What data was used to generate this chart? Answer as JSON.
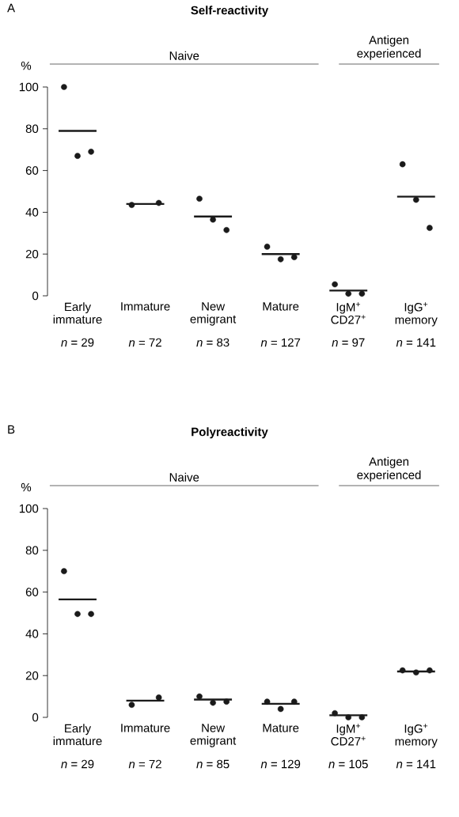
{
  "chart_data": [
    {
      "type": "scatter",
      "title": "Self-reactivity",
      "ylabel": "%",
      "categories": [
        "Early immature",
        "Immature",
        "New emigrant",
        "Mature",
        "IgM$^{+}$ CD27$^{+}$",
        "IgG$^{+}$ memory"
      ],
      "ylim": [
        0,
        100
      ],
      "yticks": [
        0,
        20,
        40,
        60,
        80,
        100
      ],
      "series": [
        {
          "marker": "circle",
          "color": "#1a1a1a",
          "x": [
            "Early immature",
            "Early immature",
            "Early immature",
            "Immature",
            "Immature",
            "New emigrant",
            "New emigrant",
            "New emigrant",
            "Mature",
            "Mature",
            "Mature",
            "IgM$^{+}$ CD27$^{+}$",
            "IgM$^{+}$ CD27$^{+}$",
            "IgM$^{+}$ CD27$^{+}$",
            "IgG$^{+}$ memory",
            "IgG$^{+}$ memory",
            "IgG$^{+}$ memory"
          ],
          "values": [
            100,
            67,
            69,
            43.5,
            44.5,
            46.5,
            36.5,
            31.5,
            23.5,
            17.5,
            18.5,
            5.5,
            1,
            1,
            63,
            46,
            32.5
          ]
        },
        {
          "type": "box",
          "color": "#1a1a1a",
          "boxes": [
            {
              "low": 79,
              "q1": 79,
              "median": 79,
              "q3": 79,
              "high": 79
            },
            {
              "low": 44,
              "q1": 44,
              "median": 44,
              "q3": 44,
              "high": 44
            },
            {
              "low": 38,
              "q1": 38,
              "median": 38,
              "q3": 38,
              "high": 38
            },
            {
              "low": 20,
              "q1": 20,
              "median": 20,
              "q3": 20,
              "high": 20
            },
            {
              "low": 2.5,
              "q1": 2.5,
              "median": 2.5,
              "q3": 2.5,
              "high": 2.5
            },
            {
              "low": 47.5,
              "q1": 47.5,
              "median": 47.5,
              "q3": 47.5,
              "high": 47.5
            }
          ]
        }
      ],
      "annotations": [
        "A",
        "Naive",
        "Antigen experienced",
        "*n* = 29",
        "*n* = 72",
        "*n* = 83",
        "*n* = 127",
        "*n* = 97",
        "*n* = 141"
      ]
    },
    {
      "type": "scatter",
      "title": "Polyreactivity",
      "ylabel": "%",
      "categories": [
        "Early immature",
        "Immature",
        "New emigrant",
        "Mature",
        "IgM$^{+}$ CD27$^{+}$",
        "IgG$^{+}$ memory"
      ],
      "ylim": [
        0,
        100
      ],
      "yticks": [
        0,
        20,
        40,
        60,
        80,
        100
      ],
      "series": [
        {
          "marker": "circle",
          "color": "#1a1a1a",
          "x": [
            "Early immature",
            "Early immature",
            "Early immature",
            "Immature",
            "Immature",
            "New emigrant",
            "New emigrant",
            "New emigrant",
            "Mature",
            "Mature",
            "Mature",
            "IgM$^{+}$ CD27$^{+}$",
            "IgM$^{+}$ CD27$^{+}$",
            "IgM$^{+}$ CD27$^{+}$",
            "IgG$^{+}$ memory",
            "IgG$^{+}$ memory",
            "IgG$^{+}$ memory"
          ],
          "values": [
            70,
            49.5,
            49.5,
            6,
            9.5,
            10,
            7,
            7.5,
            7.5,
            4,
            7.5,
            2,
            0,
            0,
            22.5,
            21.5,
            22.5
          ]
        },
        {
          "type": "box",
          "color": "#1a1a1a",
          "boxes": [
            {
              "low": 56.5,
              "q1": 56.5,
              "median": 56.5,
              "q3": 56.5,
              "high": 56.5
            },
            {
              "low": 8,
              "q1": 8,
              "median": 8,
              "q3": 8,
              "high": 8
            },
            {
              "low": 8.5,
              "q1": 8.5,
              "median": 8.5,
              "q3": 8.5,
              "high": 8.5
            },
            {
              "low": 6.5,
              "q1": 6.5,
              "median": 6.5,
              "q3": 6.5,
              "high": 6.5
            },
            {
              "low": 1,
              "q1": 1,
              "median": 1,
              "q3": 1,
              "high": 1
            },
            {
              "low": 22,
              "q1": 22,
              "median": 22,
              "q3": 22,
              "high": 22
            }
          ]
        }
      ],
      "annotations": [
        "B",
        "Naive",
        "Antigen experienced",
        "*n* = 29",
        "*n* = 72",
        "*n* = 85",
        "*n* = 129",
        "*n* = 105",
        "*n* = 141"
      ]
    }
  ]
}
